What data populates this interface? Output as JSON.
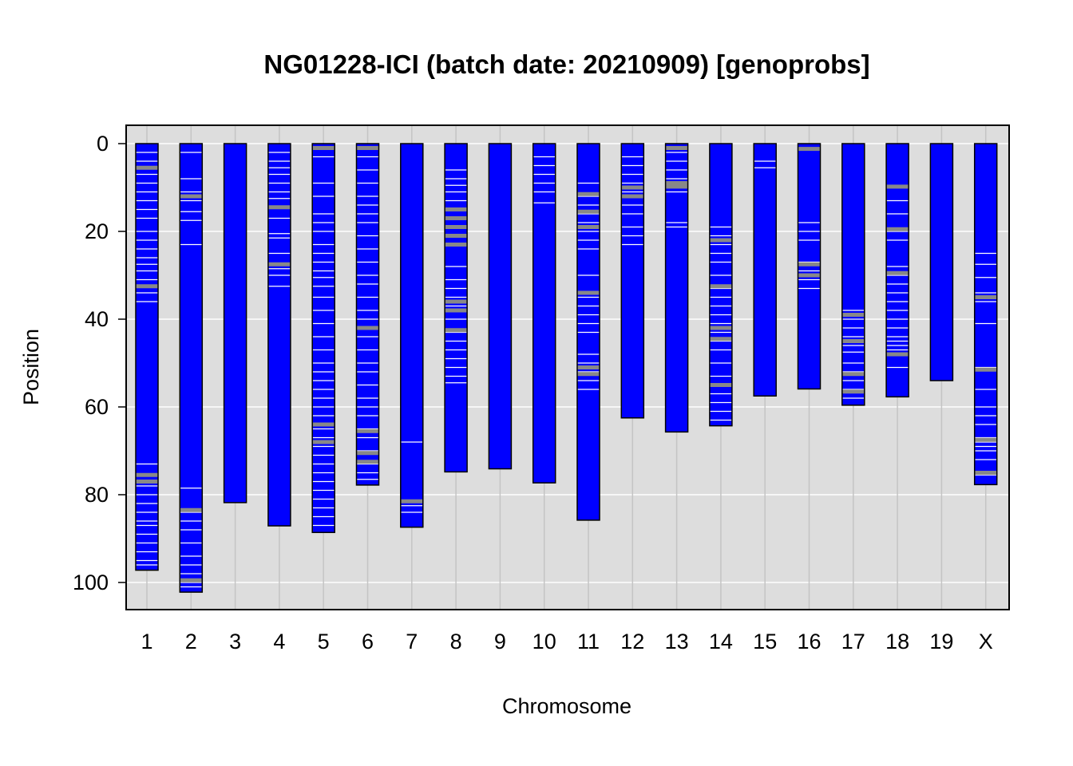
{
  "chart_data": {
    "type": "bar",
    "title": "NG01228-ICI (batch date: 20210909) [genoprobs]",
    "xlabel": "Chromosome",
    "ylabel": "Position",
    "ylim": [
      0,
      105
    ],
    "y_reversed": true,
    "yticks": [
      "0",
      "20",
      "40",
      "60",
      "80",
      "100"
    ],
    "ytick_values": [
      0,
      20,
      40,
      60,
      80,
      100
    ],
    "grid": true,
    "colors": {
      "background": "#dddddd",
      "grid": "#ffffff",
      "bar_fill": "#0000ff",
      "bar_border": "#000000",
      "band_white": "#ffffff",
      "band_gray": "#888888"
    },
    "categories": [
      "1",
      "2",
      "3",
      "4",
      "5",
      "6",
      "7",
      "8",
      "9",
      "10",
      "11",
      "12",
      "13",
      "14",
      "15",
      "16",
      "17",
      "18",
      "19",
      "X"
    ],
    "values": [
      97.2,
      102.2,
      81.8,
      87.1,
      88.6,
      77.8,
      87.4,
      74.8,
      74.1,
      77.3,
      85.8,
      62.5,
      65.7,
      64.3,
      57.5,
      55.9,
      59.6,
      57.7,
      54.0,
      77.7
    ],
    "bands": [
      {
        "white": [
          2,
          4,
          7,
          9,
          11,
          13,
          15,
          17,
          20,
          22,
          24,
          26,
          27.5,
          29,
          31,
          34,
          36,
          73,
          78,
          80,
          82,
          84,
          86,
          87,
          89,
          91,
          93,
          95,
          96
        ],
        "gray": [
          5.5,
          32.5,
          75.5,
          77
        ]
      },
      {
        "white": [
          2,
          8,
          11,
          13,
          15.5,
          17.5,
          23,
          78.5,
          84,
          86,
          88,
          91,
          94,
          96,
          98,
          100,
          101
        ],
        "gray": [
          12,
          83.5,
          99.5
        ]
      },
      {
        "white": [],
        "gray": []
      },
      {
        "white": [
          2,
          4,
          5.5,
          7,
          9,
          11,
          12.5,
          17,
          20.5,
          21.5,
          25,
          28.5,
          30,
          32.5
        ],
        "gray": [
          14.5,
          27.5
        ]
      },
      {
        "white": [
          3,
          9,
          12,
          16,
          18,
          20,
          23,
          25,
          27,
          29,
          30.5,
          32.5,
          35,
          38,
          41,
          44,
          47,
          50,
          52,
          54,
          56,
          58,
          60,
          62,
          65,
          67,
          69,
          71,
          73,
          75,
          77,
          79,
          81,
          83,
          85,
          87
        ],
        "gray": [
          1,
          64,
          68
        ]
      },
      {
        "white": [
          3,
          6,
          9,
          12,
          14,
          16,
          18,
          21,
          24,
          27,
          30,
          32,
          35,
          38,
          40,
          44,
          47,
          50,
          52,
          55,
          58,
          60,
          62,
          65,
          67,
          70,
          73,
          75,
          76.5
        ],
        "gray": [
          1,
          42,
          65.5,
          70.5,
          72.5
        ]
      },
      {
        "white": [
          68,
          82.5,
          84
        ],
        "gray": [
          81.5
        ]
      },
      {
        "white": [
          6,
          8,
          9.5,
          11,
          13,
          28,
          31,
          33,
          35,
          37,
          40,
          43,
          45,
          47,
          49,
          51,
          53,
          54.5
        ],
        "gray": [
          15,
          17,
          19,
          21,
          23,
          36,
          38,
          42.5
        ]
      },
      {
        "white": [],
        "gray": []
      },
      {
        "white": [
          3,
          5,
          7,
          9,
          11,
          13.5
        ],
        "gray": []
      },
      {
        "white": [
          9,
          12,
          14,
          16,
          18,
          20,
          22,
          24,
          30,
          35,
          37,
          39,
          41,
          43,
          48,
          50,
          52,
          54,
          56
        ],
        "gray": [
          11.5,
          15.5,
          19,
          34,
          51,
          52.5
        ]
      },
      {
        "white": [
          3,
          5,
          7,
          9,
          11,
          14,
          16,
          19,
          21,
          23
        ],
        "gray": [
          10,
          12
        ]
      },
      {
        "white": [
          2,
          4,
          6,
          8,
          11,
          18,
          19
        ],
        "gray": [
          1,
          9,
          9.8
        ]
      },
      {
        "white": [
          19,
          21,
          23,
          25,
          27,
          30,
          33,
          35,
          37,
          39,
          41,
          43,
          45,
          47,
          50,
          53,
          57,
          59,
          61,
          63
        ],
        "gray": [
          22,
          32.5,
          42,
          44.5,
          55
        ]
      },
      {
        "white": [
          4,
          5.5
        ],
        "gray": []
      },
      {
        "white": [
          1,
          18,
          20,
          22,
          27,
          29,
          31,
          33
        ],
        "gray": [
          1.2,
          27.5,
          30
        ]
      },
      {
        "white": [
          38,
          40,
          42,
          44,
          46,
          47.5,
          50,
          52,
          54,
          56,
          58
        ],
        "gray": [
          39,
          45,
          52.5,
          56.5
        ]
      },
      {
        "white": [
          10,
          13,
          16,
          20,
          22,
          28,
          30,
          32,
          34,
          36,
          38,
          40,
          42,
          44,
          45,
          46,
          47,
          48,
          51
        ],
        "gray": [
          9.8,
          19.5,
          29.5,
          48
        ]
      },
      {
        "white": [],
        "gray": []
      },
      {
        "white": [
          25,
          27.5,
          30.5,
          34,
          36,
          41,
          51,
          56,
          60,
          62,
          64,
          67,
          68,
          69,
          70,
          72,
          75.5
        ],
        "gray": [
          35,
          51.5,
          67.5,
          75
        ]
      }
    ]
  }
}
